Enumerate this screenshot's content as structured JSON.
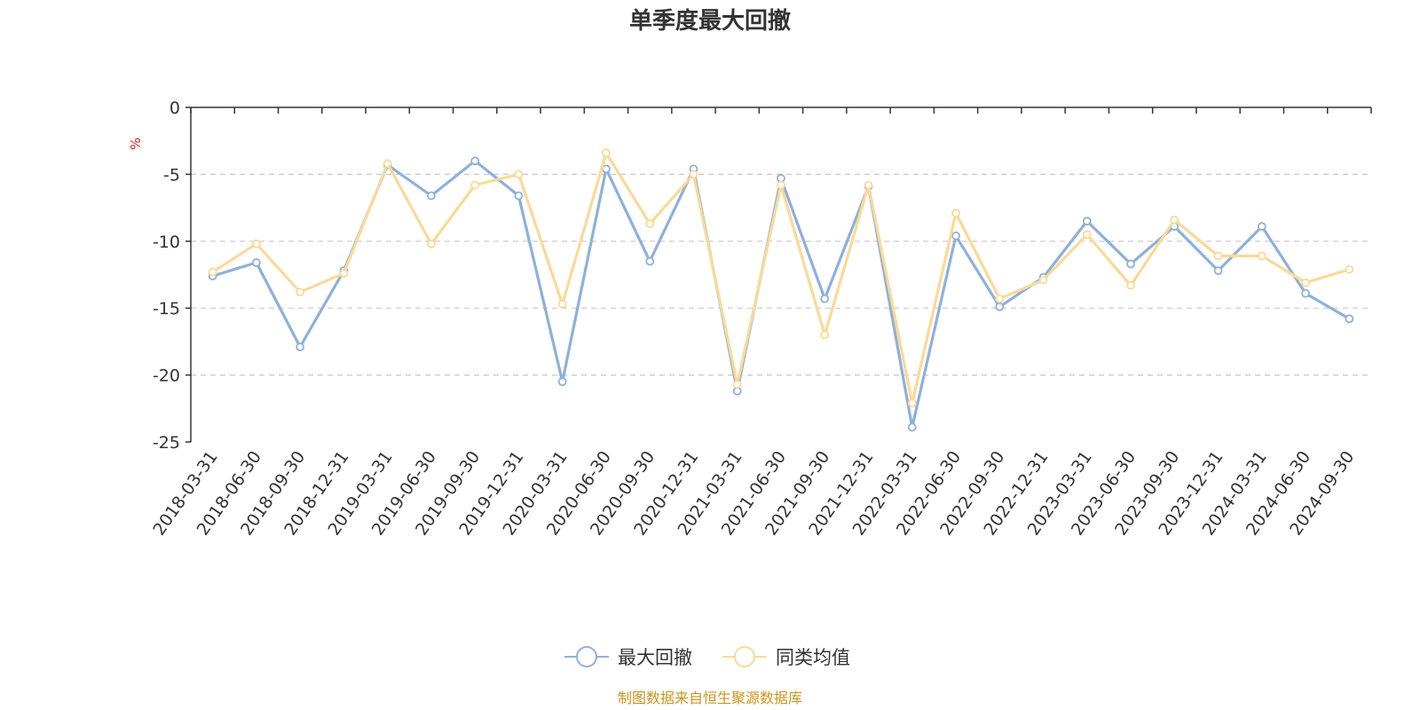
{
  "chart_data": {
    "type": "line",
    "title": "单季度最大回撤",
    "ylabel": "%",
    "ylim": [
      -25,
      0
    ],
    "yticks": [
      0,
      -5,
      -10,
      -15,
      -20,
      -25
    ],
    "grid": true,
    "legend_position": "bottom-center",
    "categories": [
      "2018-03-31",
      "2018-06-30",
      "2018-09-30",
      "2018-12-31",
      "2019-03-31",
      "2019-06-30",
      "2019-09-30",
      "2019-12-31",
      "2020-03-31",
      "2020-06-30",
      "2020-09-30",
      "2020-12-31",
      "2021-03-31",
      "2021-06-30",
      "2021-09-30",
      "2021-12-31",
      "2022-03-31",
      "2022-06-30",
      "2022-09-30",
      "2022-12-31",
      "2023-03-31",
      "2023-06-30",
      "2023-09-30",
      "2023-12-31",
      "2024-03-31",
      "2024-06-30",
      "2024-09-30"
    ],
    "series": [
      {
        "name": "最大回撤",
        "color": "#8eb0db",
        "values": [
          -12.6,
          -11.6,
          -17.9,
          -12.2,
          -4.3,
          -6.6,
          -4.0,
          -6.6,
          -20.5,
          -4.6,
          -11.5,
          -4.6,
          -21.2,
          -5.3,
          -14.3,
          -5.9,
          -23.9,
          -9.6,
          -14.9,
          -12.7,
          -8.5,
          -11.7,
          -8.9,
          -12.2,
          -8.9,
          -13.9,
          -15.8
        ]
      },
      {
        "name": "同类均值",
        "color": "#fbd997",
        "values": [
          -12.3,
          -10.2,
          -13.8,
          -12.4,
          -4.2,
          -10.2,
          -5.8,
          -5.0,
          -14.7,
          -3.4,
          -8.7,
          -5.0,
          -20.7,
          -5.8,
          -17.0,
          -5.8,
          -22.1,
          -7.9,
          -14.3,
          -12.9,
          -9.5,
          -13.3,
          -8.4,
          -11.1,
          -11.1,
          -13.1,
          -12.1
        ]
      }
    ]
  },
  "source_note": "制图数据来自恒生聚源数据库"
}
